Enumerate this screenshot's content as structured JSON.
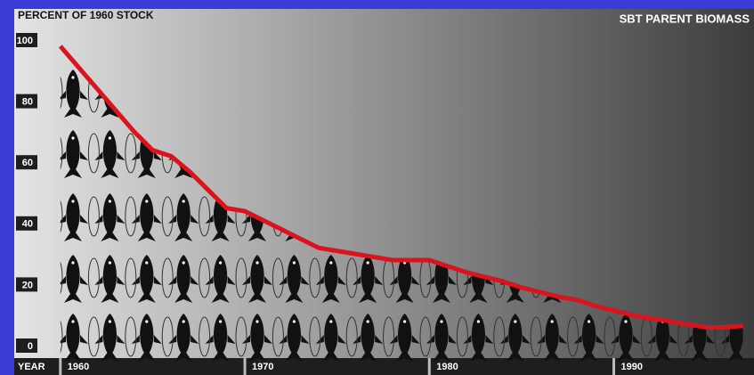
{
  "chart_data": {
    "type": "line",
    "title": "SBT PARENT BIOMASS",
    "y_label": "PERCENT OF 1960 STOCK",
    "x_label": "YEAR",
    "x": [
      1960,
      1961,
      1962,
      1963,
      1964,
      1965,
      1966,
      1967,
      1968,
      1969,
      1970,
      1971,
      1972,
      1973,
      1974,
      1975,
      1976,
      1977,
      1978,
      1979,
      1980,
      1981,
      1982,
      1983,
      1984,
      1985,
      1986,
      1987,
      1988,
      1989,
      1990,
      1991,
      1992,
      1993,
      1994,
      1995,
      1996,
      1997
    ],
    "values": [
      98,
      91,
      84,
      77,
      70,
      64,
      62,
      57,
      51,
      45,
      44,
      41,
      38,
      35,
      32,
      31,
      30,
      29,
      28,
      28,
      28,
      26,
      24,
      22.5,
      21,
      19,
      17.5,
      16,
      15,
      13,
      11.5,
      10,
      9,
      8,
      7,
      6,
      6,
      6.5
    ],
    "color": "#d9141e",
    "xlim": [
      1957.5,
      1997.6
    ],
    "ylim": [
      0,
      100
    ],
    "xticks": [
      1960,
      1970,
      1980,
      1990
    ],
    "yticks": [
      0,
      20,
      40,
      60,
      80,
      100
    ],
    "grid": false
  }
}
